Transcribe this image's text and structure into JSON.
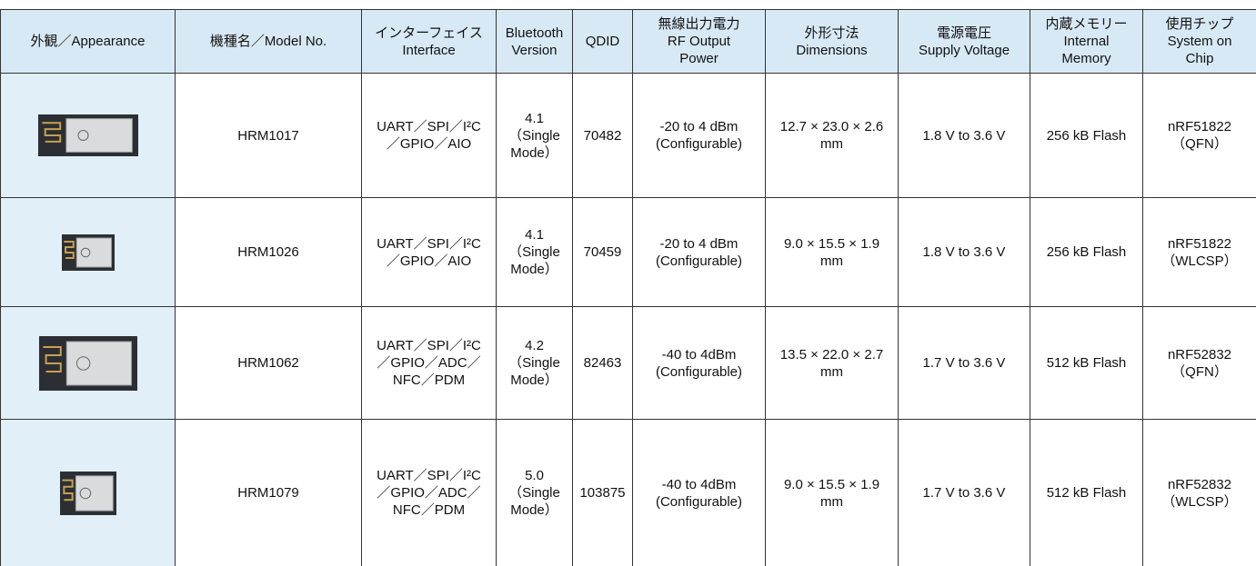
{
  "table": {
    "header": [
      [
        "外観／Appearance"
      ],
      [
        "機種名／Model No."
      ],
      [
        "インターフェイス",
        "Interface"
      ],
      [
        "Bluetooth",
        "Version"
      ],
      [
        "QDID"
      ],
      [
        "無線出力電力",
        "RF Output",
        "Power"
      ],
      [
        "外形寸法",
        "Dimensions"
      ],
      [
        "電源電圧",
        "Supply Voltage"
      ],
      [
        "内蔵メモリー",
        "Internal",
        "Memory"
      ],
      [
        "使用チップ",
        "System on",
        "Chip"
      ]
    ],
    "rows": [
      [
        [
          "HRM1017"
        ],
        [
          "UART／SPI／I²C",
          "／GPIO／AIO"
        ],
        [
          "4.1",
          "（Single",
          "Mode）"
        ],
        [
          "70482"
        ],
        [
          "-20 to 4 dBm",
          "(Configurable)"
        ],
        [
          "12.7 × 23.0 × 2.6",
          "mm"
        ],
        [
          "1.8 V  to  3.6 V"
        ],
        [
          "256 kB Flash"
        ],
        [
          "nRF51822",
          "（QFN）"
        ]
      ],
      [
        [
          "HRM1026"
        ],
        [
          "UART／SPI／I²C",
          "／GPIO／AIO"
        ],
        [
          "4.1",
          "（Single",
          "Mode）"
        ],
        [
          "70459"
        ],
        [
          "-20 to 4 dBm",
          "(Configurable)"
        ],
        [
          "9.0 × 15.5 × 1.9",
          "mm"
        ],
        [
          "1.8 V  to  3.6 V"
        ],
        [
          "256 kB Flash"
        ],
        [
          "nRF51822",
          "（WLCSP）"
        ]
      ],
      [
        [
          "HRM1062"
        ],
        [
          "UART／SPI／I²C",
          "／GPIO／ADC／",
          "NFC／PDM"
        ],
        [
          "4.2",
          "（Single",
          "Mode）"
        ],
        [
          "82463"
        ],
        [
          "-40 to 4dBm",
          "(Configurable)"
        ],
        [
          "13.5 × 22.0 × 2.7",
          "mm"
        ],
        [
          "1.7 V  to  3.6 V"
        ],
        [
          "512 kB Flash"
        ],
        [
          "nRF52832",
          "（QFN）"
        ]
      ],
      [
        [
          "HRM1079"
        ],
        [
          "UART／SPI／I²C",
          "／GPIO／ADC／",
          "NFC／PDM"
        ],
        [
          "5.0",
          "（Single",
          "Mode）"
        ],
        [
          "103875"
        ],
        [
          "-40 to 4dBm",
          "(Configurable)"
        ],
        [
          "9.0 × 15.5 × 1.9",
          "mm"
        ],
        [
          "1.7 V  to  3.6 V"
        ],
        [
          "512 kB Flash"
        ],
        [
          "nRF52832",
          "（WLCSP）"
        ]
      ]
    ]
  }
}
